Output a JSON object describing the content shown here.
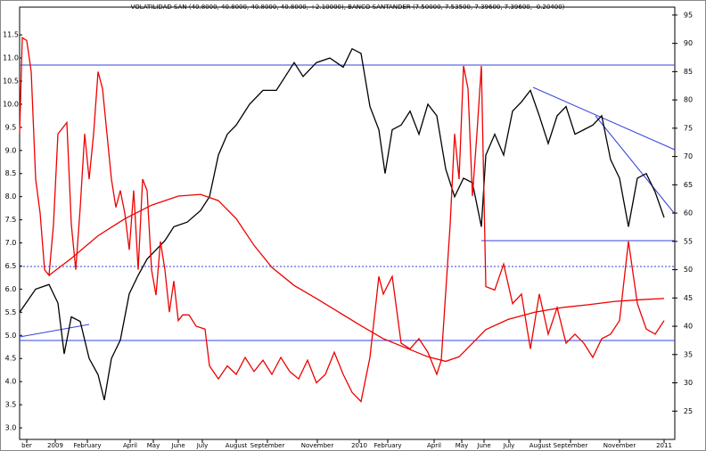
{
  "chart_data": {
    "type": "line",
    "title": "VOLATILIDAD SAN (40.8000, 40.8000, 40.8000, 40.8000, +2.10000), BANCO SANTANDER (7.50000, 7.53500, 7.39600, 7.39600, -0.20400)",
    "xlim": [
      0,
      735
    ],
    "xticks": [
      {
        "value": 8,
        "label": "ber"
      },
      {
        "value": 40,
        "label": "2009"
      },
      {
        "value": 76,
        "label": "February"
      },
      {
        "value": 124,
        "label": "April"
      },
      {
        "value": 150,
        "label": "May"
      },
      {
        "value": 178,
        "label": "June"
      },
      {
        "value": 205,
        "label": "July"
      },
      {
        "value": 243,
        "label": "August"
      },
      {
        "value": 278,
        "label": "September"
      },
      {
        "value": 334,
        "label": "November"
      },
      {
        "value": 381,
        "label": "2010"
      },
      {
        "value": 413,
        "label": "February"
      },
      {
        "value": 465,
        "label": "April"
      },
      {
        "value": 496,
        "label": "May"
      },
      {
        "value": 521,
        "label": "June"
      },
      {
        "value": 549,
        "label": "July"
      },
      {
        "value": 584,
        "label": "August"
      },
      {
        "value": 618,
        "label": "September"
      },
      {
        "value": 673,
        "label": "November"
      },
      {
        "value": 723,
        "label": "2011"
      }
    ],
    "ylim": [
      2.75,
      12.1
    ],
    "yticks": [
      {
        "value": 3,
        "label": "3.0"
      },
      3.5,
      {
        "value": 4,
        "label": "4.0"
      },
      4.5,
      {
        "value": 5,
        "label": "5.0"
      },
      5.5,
      {
        "value": 6,
        "label": "6.0"
      },
      6.5,
      {
        "value": 7,
        "label": "7.0"
      },
      7.5,
      {
        "value": 8,
        "label": "8.0"
      },
      8.5,
      {
        "value": 9,
        "label": "9.0"
      },
      9.5,
      {
        "value": 10,
        "label": "10.0"
      },
      10.5,
      {
        "value": 11,
        "label": "11.0"
      },
      11.5
    ],
    "y2lim": [
      20,
      96.4
    ],
    "y2ticks": [
      25,
      30,
      35,
      40,
      45,
      50,
      55,
      60,
      65,
      70,
      75,
      80,
      85,
      90,
      95
    ],
    "series": [
      {
        "color": "#000000",
        "axis": "y",
        "x": [
          0,
          18,
          33,
          43,
          50,
          58,
          68,
          78,
          88,
          95,
          103,
          113,
          123,
          133,
          143,
          153,
          163,
          173,
          188,
          203,
          213,
          223,
          233,
          243,
          258,
          273,
          288,
          298,
          308,
          318,
          333,
          348,
          363,
          373,
          383,
          393,
          403,
          410,
          418,
          428,
          438,
          448,
          458,
          468,
          478,
          488,
          498,
          508,
          518,
          523,
          533,
          543,
          553,
          563,
          573,
          583,
          593,
          603,
          613,
          623,
          633,
          643,
          653,
          663,
          673,
          683,
          693,
          703,
          713,
          723
        ],
        "values": [
          5.5,
          6.0,
          6.1,
          5.7,
          4.6,
          5.4,
          5.3,
          4.5,
          4.15,
          3.6,
          4.5,
          4.9,
          5.9,
          6.3,
          6.65,
          6.85,
          7.05,
          7.35,
          7.45,
          7.7,
          8.0,
          8.9,
          9.35,
          9.55,
          10.0,
          10.3,
          10.3,
          10.6,
          10.9,
          10.6,
          10.9,
          11.0,
          10.8,
          11.2,
          11.1,
          9.95,
          9.45,
          8.5,
          9.45,
          9.55,
          9.85,
          9.35,
          10.0,
          9.75,
          8.6,
          8.0,
          8.4,
          8.3,
          7.35,
          8.9,
          9.35,
          8.9,
          9.85,
          10.05,
          10.3,
          9.75,
          9.15,
          9.75,
          9.95,
          9.35,
          9.45,
          9.55,
          9.75,
          8.8,
          8.4,
          7.35,
          8.4,
          8.5,
          8.1,
          7.55
        ]
      },
      {
        "color": "#ee0000",
        "axis": "y2",
        "x": [
          0,
          3,
          8,
          13,
          18,
          23,
          28,
          33,
          38,
          43,
          48,
          53,
          58,
          63,
          68,
          73,
          78,
          83,
          88,
          93,
          98,
          103,
          108,
          113,
          118,
          123,
          128,
          133,
          138,
          143,
          148,
          153,
          158,
          163,
          168,
          173,
          178,
          183,
          190,
          198,
          208,
          213,
          223,
          233,
          243,
          253,
          263,
          273,
          283,
          293,
          303,
          313,
          323,
          333,
          343,
          353,
          363,
          373,
          383,
          393,
          403,
          408,
          418,
          428,
          438,
          448,
          458,
          468,
          473,
          483,
          488,
          493,
          498,
          503,
          508,
          513,
          518,
          523,
          533,
          543,
          553,
          563,
          573,
          583,
          593,
          603,
          613,
          623,
          633,
          643,
          653,
          663,
          673,
          683,
          693,
          703,
          713,
          723
        ],
        "values": [
          74,
          91,
          90.5,
          85,
          66,
          60,
          50,
          49,
          58,
          74,
          75,
          76,
          58,
          50,
          61,
          74,
          66,
          74,
          85,
          82,
          74,
          66,
          61,
          64,
          60,
          53.5,
          64,
          50,
          66,
          64,
          50,
          45.5,
          55,
          50,
          42.5,
          48,
          41,
          42,
          42,
          40,
          39.5,
          33,
          30.7,
          33,
          31.5,
          34.5,
          32,
          34,
          31.5,
          34.5,
          32,
          30.7,
          34,
          30,
          31.5,
          35.4,
          31.5,
          28.3,
          26.7,
          34.5,
          48.8,
          45.7,
          48.8,
          37,
          36,
          37.8,
          35.4,
          31.5,
          34,
          58,
          74,
          66,
          86,
          82,
          63,
          74,
          86,
          47,
          46.4,
          51,
          44,
          45.7,
          36,
          45.7,
          38.6,
          43.3,
          37,
          38.6,
          37,
          34.5,
          37.8,
          38.6,
          41,
          55,
          44,
          39.5,
          38.6,
          41
        ]
      },
      {
        "color": "#ee0000",
        "axis": "y2",
        "x": [
          33,
          58,
          88,
          118,
          148,
          178,
          203,
          223,
          243,
          263,
          283,
          308,
          333,
          358,
          383,
          408,
          433,
          458,
          478,
          493,
          508,
          523,
          548,
          578,
          608,
          638,
          668,
          698,
          723
        ],
        "values": [
          49,
          52,
          56,
          59,
          61.4,
          63,
          63.3,
          62.2,
          59,
          54.3,
          50.4,
          47.2,
          44.9,
          42.5,
          40.1,
          37.8,
          36.2,
          34.6,
          33.8,
          34.6,
          37,
          39.4,
          41.2,
          42.5,
          43.3,
          43.8,
          44.4,
          44.7,
          44.9
        ]
      }
    ]
  }
}
